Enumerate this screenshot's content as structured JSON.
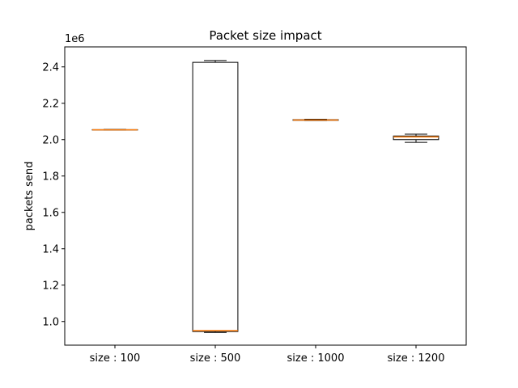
{
  "chart_data": {
    "type": "box",
    "title": "Packet size impact",
    "ylabel": "packets send",
    "xlabel": "",
    "y_multiplier_label": "1e6",
    "y_multiplier": 1000000,
    "ylim": [
      0.87,
      2.51
    ],
    "yticks": [
      1.0,
      1.2,
      1.4,
      1.6,
      1.8,
      2.0,
      2.2,
      2.4
    ],
    "ytick_labels": [
      "1.0",
      "1.2",
      "1.4",
      "1.6",
      "1.8",
      "2.0",
      "2.2",
      "2.4"
    ],
    "categories": [
      "size : 100",
      "size : 500",
      "size : 1000",
      "size : 1200"
    ],
    "boxes": [
      {
        "label": "size : 100",
        "whisker_low": 2.052,
        "q1": 2.053,
        "median": 2.054,
        "q3": 2.055,
        "whisker_high": 2.056
      },
      {
        "label": "size : 500",
        "whisker_low": 0.94,
        "q1": 0.945,
        "median": 0.95,
        "q3": 2.425,
        "whisker_high": 2.435
      },
      {
        "label": "size : 1000",
        "whisker_low": 2.105,
        "q1": 2.106,
        "median": 2.108,
        "q3": 2.11,
        "whisker_high": 2.112
      },
      {
        "label": "size : 1200",
        "whisker_low": 1.985,
        "q1": 2.0,
        "median": 2.015,
        "q3": 2.02,
        "whisker_high": 2.03
      }
    ],
    "grid": false,
    "legend": "none",
    "colors": {
      "box": "#000000",
      "median": "#ff7f0e"
    }
  }
}
